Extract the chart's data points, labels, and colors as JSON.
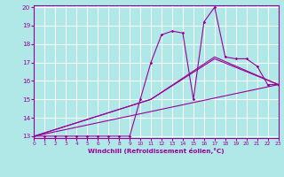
{
  "xlabel": "Windchill (Refroidissement éolien,°C)",
  "bg_color": "#b0e8e8",
  "line_color": "#990099",
  "grid_color": "#ffffff",
  "xmin": 0,
  "xmax": 23,
  "ymin": 13,
  "ymax": 20,
  "yticks": [
    13,
    14,
    15,
    16,
    17,
    18,
    19,
    20
  ],
  "xticks": [
    0,
    1,
    2,
    3,
    4,
    5,
    6,
    7,
    8,
    9,
    10,
    11,
    12,
    13,
    14,
    15,
    16,
    17,
    18,
    19,
    20,
    21,
    22,
    23
  ],
  "series": [
    {
      "x": [
        0,
        1,
        2,
        3,
        4,
        5,
        6,
        7,
        8,
        9,
        10,
        11,
        12,
        13,
        14,
        15,
        16,
        17,
        18,
        19,
        20,
        21,
        22,
        23
      ],
      "y": [
        13,
        13,
        13,
        13,
        13,
        13,
        13,
        13,
        13,
        13,
        15,
        17,
        18.5,
        18.7,
        18.6,
        15,
        19.2,
        20,
        17.3,
        17.2,
        17.2,
        16.8,
        15.8,
        15.8
      ]
    },
    {
      "x": [
        0,
        23
      ],
      "y": [
        13,
        15.8
      ]
    },
    {
      "x": [
        0,
        11,
        17,
        23
      ],
      "y": [
        13,
        15.0,
        17.2,
        15.8
      ]
    },
    {
      "x": [
        0,
        11,
        17,
        23
      ],
      "y": [
        13,
        15.0,
        17.3,
        15.8
      ]
    }
  ]
}
